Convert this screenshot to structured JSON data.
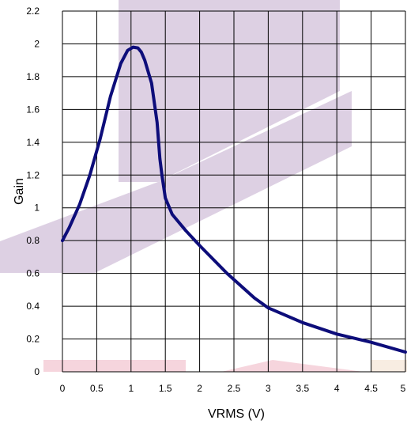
{
  "chart_data": {
    "type": "line",
    "title": "",
    "xlabel": "VRMS (V)",
    "ylabel": "Gain",
    "xlim": [
      0,
      5
    ],
    "ylim": [
      0,
      2.2
    ],
    "grid": true,
    "x_ticks": [
      "0",
      "0.5",
      "1",
      "1.5",
      "2",
      "2.5",
      "3",
      "3.5",
      "4",
      "4.5",
      "5"
    ],
    "y_ticks": [
      "0",
      "0.2",
      "0.4",
      "0.6",
      "0.8",
      "1",
      "1.2",
      "1.4",
      "1.6",
      "1.8",
      "2",
      "2.2"
    ],
    "series": [
      {
        "color": "#0d0d7a",
        "x": [
          0,
          0.1,
          0.25,
          0.4,
          0.55,
          0.7,
          0.85,
          0.95,
          1.03,
          1.1,
          1.15,
          1.2,
          1.3,
          1.38,
          1.42,
          1.45,
          1.5,
          1.6,
          1.8,
          2.0,
          2.4,
          2.8,
          3.0,
          3.5,
          4.0,
          4.5,
          5.0
        ],
        "y": [
          0.8,
          0.88,
          1.02,
          1.2,
          1.42,
          1.68,
          1.88,
          1.96,
          1.98,
          1.975,
          1.95,
          1.9,
          1.76,
          1.52,
          1.3,
          1.2,
          1.06,
          0.96,
          0.86,
          0.77,
          0.6,
          0.45,
          0.39,
          0.3,
          0.23,
          0.18,
          0.12
        ]
      }
    ]
  },
  "background_watermark": {
    "colors": [
      "#d7c8de",
      "#f0b9c6",
      "#f5e6d5"
    ]
  }
}
